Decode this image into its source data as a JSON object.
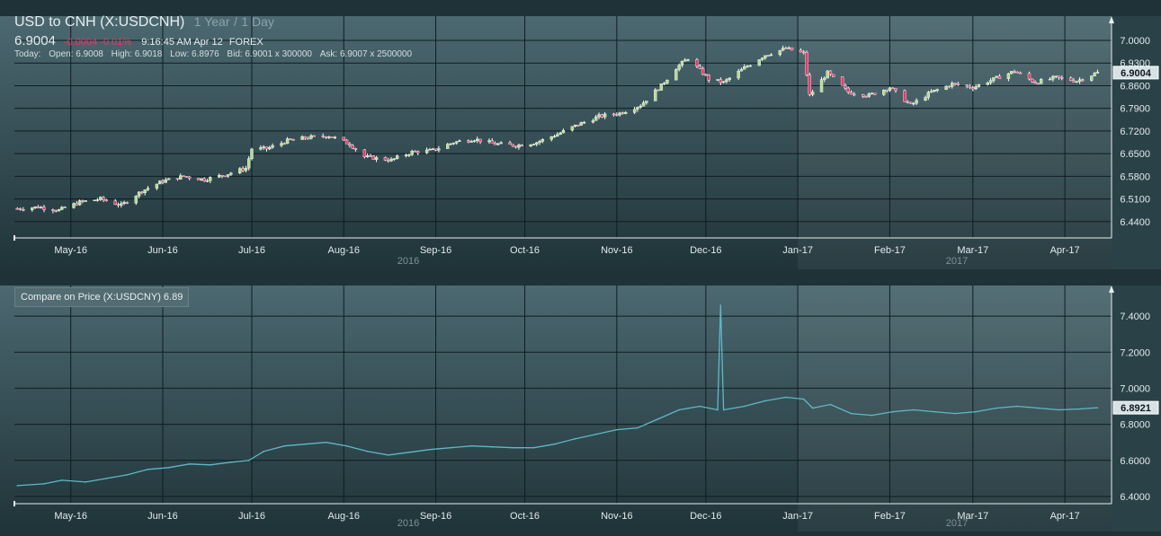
{
  "header": {
    "title": "USD to CNH (X:USDCNH)",
    "range_1y": "1 Year",
    "range_sep": "/",
    "range_1d": "1 Day",
    "price": "6.9004",
    "change": "-0.0004",
    "change_pct": "-0.01%",
    "time": "9:16:45 AM Apr 12",
    "market": "FOREX",
    "today_label": "Today:",
    "open": "Open: 6.9008",
    "high": "High: 6.9018",
    "low": "Low: 6.8976",
    "bid": "Bid: 6.9001 x 300000",
    "ask": "Ask: 6.9007 x 2500000"
  },
  "colors": {
    "up_candle": "#b6dd8e",
    "down_candle": "#e8386a",
    "compare_line": "#5fb8c8",
    "negative_change": "#e8386a"
  },
  "compare": {
    "label": "Compare on Price (X:USDCNY) 6.89"
  },
  "chart_data": [
    {
      "type": "candlestick",
      "title": "USD to CNH (X:USDCNH)",
      "x_labels": [
        "May-16",
        "Jun-16",
        "Jul-16",
        "Aug-16",
        "Sep-16",
        "Oct-16",
        "Nov-16",
        "Dec-16",
        "Jan-17",
        "Feb-17",
        "Mar-17",
        "Apr-17"
      ],
      "year_labels": [
        "2016",
        "2017"
      ],
      "y_ticks": [
        "7.0000",
        "6.9300",
        "6.8600",
        "6.7900",
        "6.7200",
        "6.6500",
        "6.5800",
        "6.5100",
        "6.4400"
      ],
      "ylim": [
        6.42,
        7.025
      ],
      "last_value_label": "6.9004",
      "close_series": [
        [
          "2016-04-13",
          6.48
        ],
        [
          "2016-04-20",
          6.485
        ],
        [
          "2016-04-27",
          6.475
        ],
        [
          "2016-05-04",
          6.5
        ],
        [
          "2016-05-11",
          6.51
        ],
        [
          "2016-05-18",
          6.49
        ],
        [
          "2016-05-25",
          6.535
        ],
        [
          "2016-06-01",
          6.565
        ],
        [
          "2016-06-08",
          6.58
        ],
        [
          "2016-06-15",
          6.57
        ],
        [
          "2016-06-22",
          6.585
        ],
        [
          "2016-06-29",
          6.605
        ],
        [
          "2016-07-01",
          6.665
        ],
        [
          "2016-07-06",
          6.665
        ],
        [
          "2016-07-13",
          6.69
        ],
        [
          "2016-07-20",
          6.7
        ],
        [
          "2016-07-27",
          6.705
        ],
        [
          "2016-08-03",
          6.68
        ],
        [
          "2016-08-08",
          6.64
        ],
        [
          "2016-08-17",
          6.63
        ],
        [
          "2016-08-24",
          6.655
        ],
        [
          "2016-08-31",
          6.66
        ],
        [
          "2016-09-07",
          6.685
        ],
        [
          "2016-09-14",
          6.695
        ],
        [
          "2016-09-21",
          6.68
        ],
        [
          "2016-09-28",
          6.675
        ],
        [
          "2016-10-05",
          6.685
        ],
        [
          "2016-10-12",
          6.71
        ],
        [
          "2016-10-19",
          6.74
        ],
        [
          "2016-10-26",
          6.765
        ],
        [
          "2016-11-02",
          6.775
        ],
        [
          "2016-11-09",
          6.8
        ],
        [
          "2016-11-16",
          6.86
        ],
        [
          "2016-11-21",
          6.915
        ],
        [
          "2016-11-25",
          6.945
        ],
        [
          "2016-12-02",
          6.88
        ],
        [
          "2016-12-07",
          6.87
        ],
        [
          "2016-12-14",
          6.915
        ],
        [
          "2016-12-21",
          6.955
        ],
        [
          "2016-12-28",
          6.975
        ],
        [
          "2017-01-03",
          6.96
        ],
        [
          "2017-01-05",
          6.83
        ],
        [
          "2017-01-11",
          6.9
        ],
        [
          "2017-01-18",
          6.84
        ],
        [
          "2017-01-25",
          6.83
        ],
        [
          "2017-02-01",
          6.855
        ],
        [
          "2017-02-08",
          6.8
        ],
        [
          "2017-02-15",
          6.84
        ],
        [
          "2017-02-22",
          6.865
        ],
        [
          "2017-03-01",
          6.855
        ],
        [
          "2017-03-08",
          6.88
        ],
        [
          "2017-03-15",
          6.905
        ],
        [
          "2017-03-22",
          6.87
        ],
        [
          "2017-03-29",
          6.885
        ],
        [
          "2017-04-05",
          6.875
        ],
        [
          "2017-04-12",
          6.9004
        ]
      ]
    },
    {
      "type": "line",
      "title": "Compare on Price (X:USDCNY) 6.89",
      "x_labels": [
        "May-16",
        "Jun-16",
        "Jul-16",
        "Aug-16",
        "Sep-16",
        "Oct-16",
        "Nov-16",
        "Dec-16",
        "Jan-17",
        "Feb-17",
        "Mar-17",
        "Apr-17"
      ],
      "year_labels": [
        "2016",
        "2017"
      ],
      "y_ticks": [
        "7.4000",
        "7.2000",
        "7.0000",
        "6.8000",
        "6.6000",
        "6.4000"
      ],
      "ylim": [
        6.38,
        7.48
      ],
      "last_value_label": "6.8921",
      "series": [
        {
          "points": [
            [
              "2016-04-13",
              6.46
            ],
            [
              "2016-04-22",
              6.47
            ],
            [
              "2016-04-28",
              6.49
            ],
            [
              "2016-05-06",
              6.48
            ],
            [
              "2016-05-13",
              6.5
            ],
            [
              "2016-05-20",
              6.52
            ],
            [
              "2016-05-27",
              6.55
            ],
            [
              "2016-06-03",
              6.56
            ],
            [
              "2016-06-10",
              6.58
            ],
            [
              "2016-06-17",
              6.575
            ],
            [
              "2016-06-24",
              6.59
            ],
            [
              "2016-06-30",
              6.6
            ],
            [
              "2016-07-05",
              6.65
            ],
            [
              "2016-07-12",
              6.68
            ],
            [
              "2016-07-19",
              6.69
            ],
            [
              "2016-07-26",
              6.7
            ],
            [
              "2016-08-02",
              6.68
            ],
            [
              "2016-08-09",
              6.65
            ],
            [
              "2016-08-16",
              6.63
            ],
            [
              "2016-08-23",
              6.645
            ],
            [
              "2016-08-30",
              6.66
            ],
            [
              "2016-09-06",
              6.67
            ],
            [
              "2016-09-13",
              6.68
            ],
            [
              "2016-09-20",
              6.675
            ],
            [
              "2016-09-27",
              6.67
            ],
            [
              "2016-10-04",
              6.67
            ],
            [
              "2016-10-11",
              6.69
            ],
            [
              "2016-10-18",
              6.72
            ],
            [
              "2016-10-25",
              6.745
            ],
            [
              "2016-11-01",
              6.77
            ],
            [
              "2016-11-08",
              6.78
            ],
            [
              "2016-11-15",
              6.83
            ],
            [
              "2016-11-22",
              6.88
            ],
            [
              "2016-11-29",
              6.9
            ],
            [
              "2016-12-05",
              6.88
            ],
            [
              "2016-12-06",
              7.46
            ],
            [
              "2016-12-07",
              6.88
            ],
            [
              "2016-12-14",
              6.9
            ],
            [
              "2016-12-21",
              6.93
            ],
            [
              "2016-12-28",
              6.95
            ],
            [
              "2017-01-03",
              6.94
            ],
            [
              "2017-01-06",
              6.89
            ],
            [
              "2017-01-12",
              6.91
            ],
            [
              "2017-01-19",
              6.86
            ],
            [
              "2017-01-26",
              6.85
            ],
            [
              "2017-02-02",
              6.87
            ],
            [
              "2017-02-09",
              6.88
            ],
            [
              "2017-02-16",
              6.87
            ],
            [
              "2017-02-23",
              6.86
            ],
            [
              "2017-03-02",
              6.87
            ],
            [
              "2017-03-09",
              6.89
            ],
            [
              "2017-03-16",
              6.9
            ],
            [
              "2017-03-23",
              6.89
            ],
            [
              "2017-03-30",
              6.88
            ],
            [
              "2017-04-06",
              6.885
            ],
            [
              "2017-04-12",
              6.8921
            ]
          ]
        }
      ]
    }
  ]
}
